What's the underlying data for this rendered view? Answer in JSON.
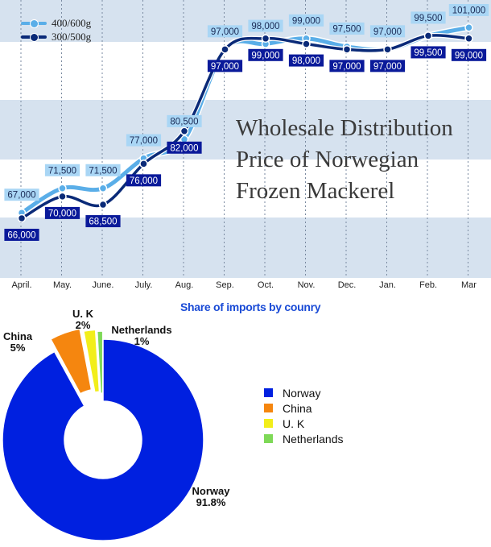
{
  "chart_data": [
    {
      "type": "line",
      "title_lines": [
        "Wholesale Distribution",
        "Price of Norwegian",
        "Frozen Mackerel"
      ],
      "categories": [
        "April.",
        "May.",
        "June.",
        "July.",
        "Aug.",
        "Sep.",
        "Oct.",
        "Nov.",
        "Dec.",
        "Jan.",
        "Feb.",
        "Mar"
      ],
      "series": [
        {
          "name": "400/600g",
          "color": "#5aaee8",
          "values": [
            67000,
            71500,
            71500,
            77000,
            80500,
            97000,
            98000,
            99000,
            97500,
            97000,
            99500,
            101000
          ],
          "labels": [
            "67,000",
            "71,500",
            "71,500",
            "77,000",
            "80,500",
            "97,000",
            "98,000",
            "99,000",
            "97,500",
            "97,000",
            "99,500",
            "101,000"
          ]
        },
        {
          "name": "300/500g",
          "color": "#0a2a78",
          "values": [
            66000,
            70000,
            68500,
            76000,
            82000,
            97000,
            99000,
            98000,
            97000,
            97000,
            99500,
            99000
          ],
          "labels": [
            "66,000",
            "70,000",
            "68,500",
            "76,000",
            "82,000",
            "97,000",
            "99,000",
            "98,000",
            "97,000",
            "97,000",
            "99,500",
            "99,000"
          ]
        }
      ],
      "ylim": [
        62000,
        104000
      ],
      "grid": true,
      "legend": "top-left"
    },
    {
      "type": "pie",
      "title": "Share of imports by counry",
      "slices": [
        {
          "label": "Norway",
          "value": 91.8,
          "value_label": "91.8%",
          "color": "#0020e0"
        },
        {
          "label": "China",
          "value": 5,
          "value_label": "5%",
          "color": "#f5860f"
        },
        {
          "label": "U. K",
          "value": 2,
          "value_label": "2%",
          "color": "#f2ee1a"
        },
        {
          "label": "Netherlands",
          "value": 1,
          "value_label": "1%",
          "color": "#7ed957"
        }
      ],
      "legend": "right"
    }
  ]
}
